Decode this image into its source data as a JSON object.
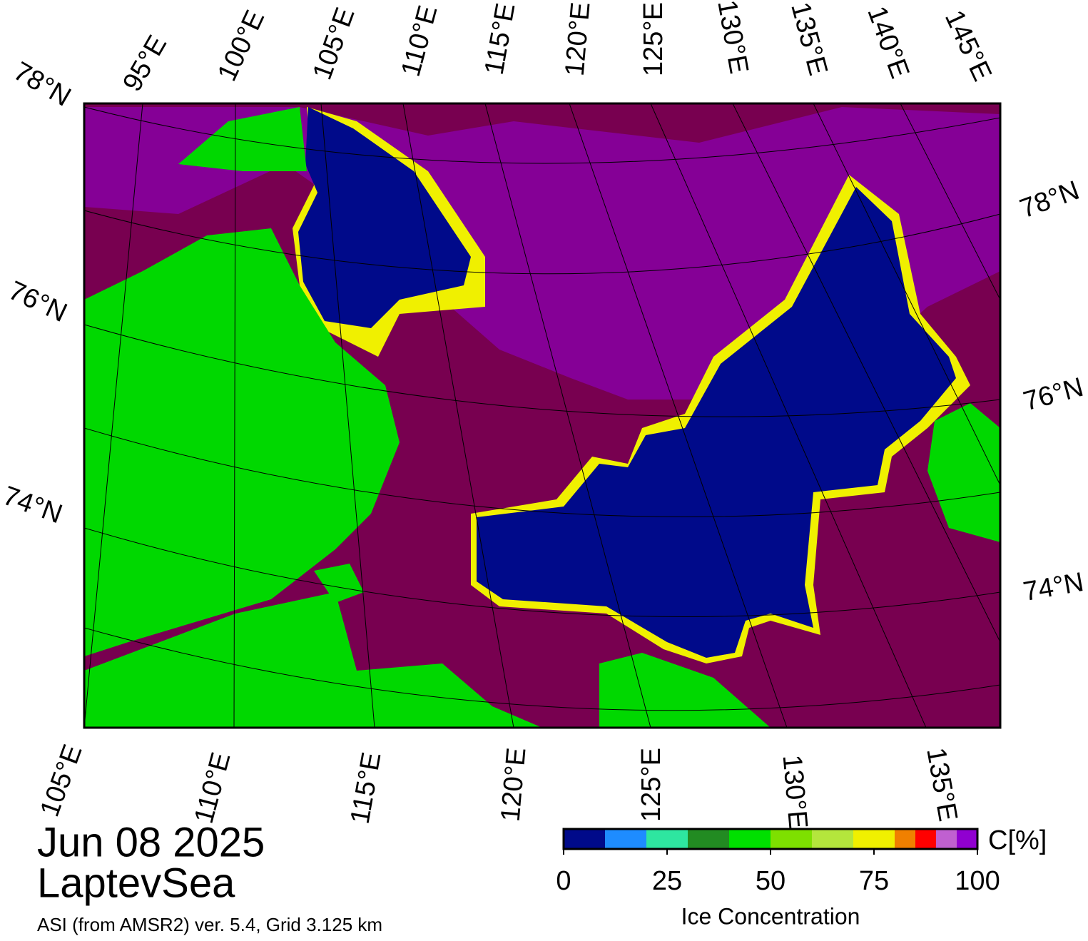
{
  "map": {
    "date": "Jun 08 2025",
    "region": "LaptevSea",
    "source": "ASI (from AMSR2) ver. 5.4,  Grid 3.125 km",
    "top_lon_labels": [
      "95°E",
      "100°E",
      "105°E",
      "110°E",
      "115°E",
      "120°E",
      "125°E",
      "130°E",
      "135°E",
      "140°E",
      "145°E"
    ],
    "bottom_lon_labels": [
      "105°E",
      "110°E",
      "115°E",
      "120°E",
      "125°E",
      "130°E",
      "135°E"
    ],
    "left_lat_labels": [
      "78°N",
      "76°N",
      "74°N"
    ],
    "right_lat_labels": [
      "78°N",
      "76°N",
      "74°N"
    ],
    "colorbar": {
      "label": "Ice Concentration",
      "unit": "C[%]",
      "bounds": [
        0,
        10,
        20,
        30,
        40,
        50,
        60,
        70,
        80,
        85,
        90,
        95,
        100
      ],
      "colors": [
        "#000a8a",
        "#1e8cff",
        "#2ee6a0",
        "#228b22",
        "#00e000",
        "#7ee000",
        "#b4e63c",
        "#f0f000",
        "#f08000",
        "#ff0000",
        "#c060d0",
        "#9000d0"
      ],
      "ticks": [
        0,
        25,
        50,
        75,
        100
      ]
    }
  }
}
